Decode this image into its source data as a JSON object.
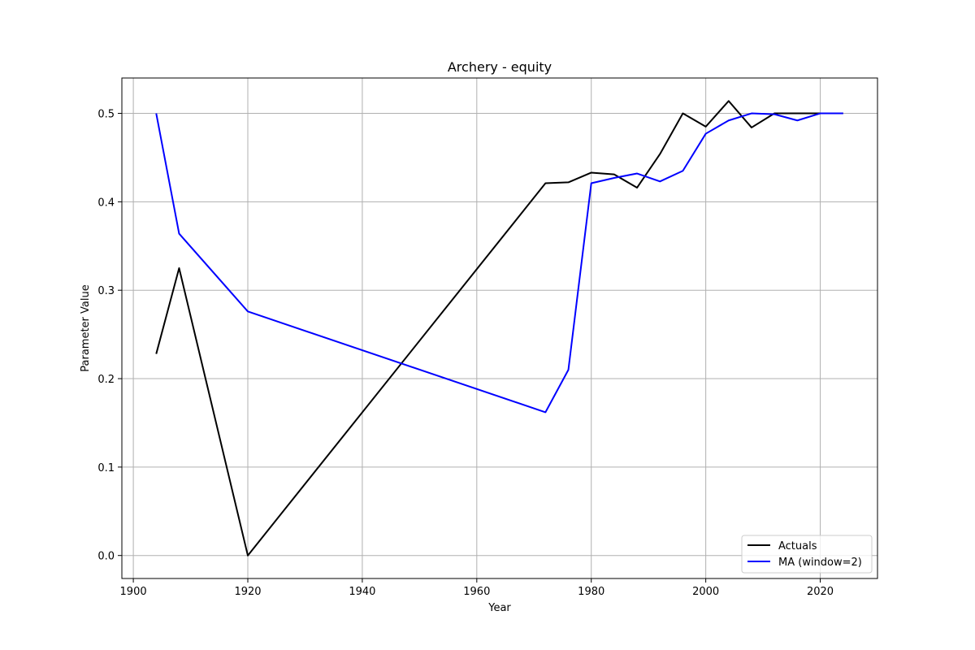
{
  "chart_data": {
    "type": "line",
    "title": "Archery - equity",
    "xlabel": "Year",
    "ylabel": "Parameter Value",
    "xlim": [
      1898,
      2030
    ],
    "ylim": [
      -0.026,
      0.54
    ],
    "x_ticks": [
      1900,
      1920,
      1940,
      1960,
      1980,
      2000,
      2020
    ],
    "y_ticks": [
      0.0,
      0.1,
      0.2,
      0.3,
      0.4,
      0.5
    ],
    "grid": true,
    "legend_position": "lower-right",
    "series": [
      {
        "name": "Actuals",
        "color": "#000000",
        "x": [
          1904,
          1908,
          1920,
          1972,
          1976,
          1980,
          1984,
          1988,
          1992,
          1996,
          2000,
          2004,
          2008,
          2012,
          2016,
          2020,
          2024
        ],
        "y": [
          0.228,
          0.325,
          0.0,
          0.421,
          0.422,
          0.433,
          0.431,
          0.416,
          0.454,
          0.5,
          0.485,
          0.514,
          0.484,
          0.5,
          0.5,
          0.5,
          0.5
        ]
      },
      {
        "name": "MA (window=2)",
        "color": "#0000ff",
        "x": [
          1904,
          1908,
          1920,
          1972,
          1976,
          1980,
          1984,
          1988,
          1992,
          1996,
          2000,
          2004,
          2008,
          2012,
          2016,
          2020,
          2024
        ],
        "y": [
          0.5,
          0.364,
          0.276,
          0.162,
          0.21,
          0.421,
          0.427,
          0.432,
          0.423,
          0.435,
          0.477,
          0.492,
          0.5,
          0.499,
          0.492,
          0.5,
          0.5
        ]
      }
    ]
  }
}
